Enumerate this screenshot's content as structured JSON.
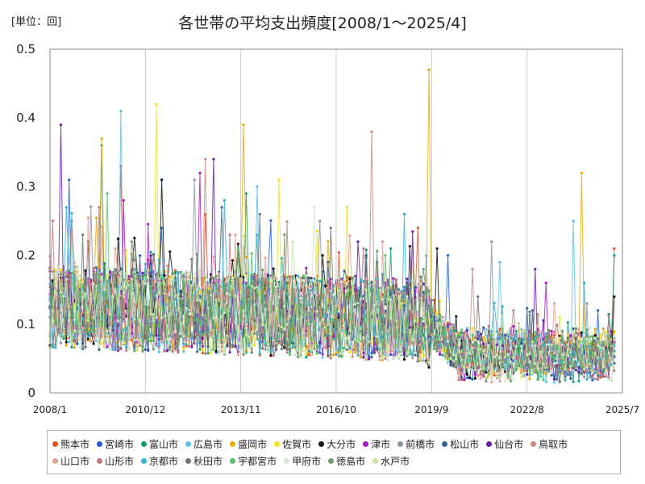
{
  "chart_data": {
    "type": "line",
    "title": "各世帯の平均支出頻度[2008/1～2025/4]",
    "unit_label": "[単位：回]",
    "x_ticks": [
      "2008/1",
      "2010/12",
      "2013/11",
      "2016/10",
      "2019/9",
      "2022/8",
      "2025/7"
    ],
    "x_range": [
      "2008/1",
      "2025/7"
    ],
    "ylim": [
      0,
      0.5
    ],
    "y_ticks": [
      0,
      0.1,
      0.2,
      0.3,
      0.4,
      0.5
    ],
    "y_tick_labels": [
      "0",
      "0.1",
      "0.2",
      "0.3",
      "0.4",
      "0.5"
    ],
    "grid": "vertical",
    "legend_placement": "bottom",
    "series": [
      {
        "name": "熊本市",
        "color": "#e8501e",
        "peaks": [
          [
            "2010/3",
            0.33
          ],
          [
            "2012/10",
            0.26
          ],
          [
            "2019/4",
            0.24
          ],
          [
            "2025/4",
            0.21
          ]
        ]
      },
      {
        "name": "宮崎市",
        "color": "#1f5fd6",
        "peaks": [
          [
            "2008/8",
            0.31
          ],
          [
            "2011/6",
            0.24
          ],
          [
            "2020/3",
            0.2
          ],
          [
            "2024/10",
            0.12
          ]
        ]
      },
      {
        "name": "富山市",
        "color": "#0e9f77",
        "peaks": [
          [
            "2009/8",
            0.36
          ],
          [
            "2014/1",
            0.29
          ],
          [
            "2018/6",
            0.21
          ],
          [
            "2025/4",
            0.2
          ]
        ]
      },
      {
        "name": "広島市",
        "color": "#5bc0f0",
        "peaks": [
          [
            "2010/3",
            0.41
          ],
          [
            "2014/5",
            0.3
          ],
          [
            "2021/10",
            0.19
          ],
          [
            "2024/1",
            0.25
          ]
        ]
      },
      {
        "name": "盛岡市",
        "color": "#e8a90b",
        "peaks": [
          [
            "2009/8",
            0.37
          ],
          [
            "2013/12",
            0.39
          ],
          [
            "2019/8",
            0.47
          ],
          [
            "2024/4",
            0.32
          ]
        ]
      },
      {
        "name": "佐賀市",
        "color": "#f5e21a",
        "peaks": [
          [
            "2011/4",
            0.42
          ],
          [
            "2015/1",
            0.31
          ],
          [
            "2017/2",
            0.27
          ],
          [
            "2019/2",
            0.21
          ]
        ]
      },
      {
        "name": "大分市",
        "color": "#111111",
        "peaks": [
          [
            "2011/6",
            0.31
          ],
          [
            "2016/5",
            0.2
          ],
          [
            "2019/11",
            0.21
          ],
          [
            "2025/4",
            0.14
          ]
        ]
      },
      {
        "name": "津市",
        "color": "#a21ac2",
        "peaks": [
          [
            "2010/4",
            0.28
          ],
          [
            "2012/8",
            0.32
          ],
          [
            "2018/1",
            0.19
          ],
          [
            "2023/3",
            0.16
          ]
        ]
      },
      {
        "name": "前橋市",
        "color": "#8c97a6",
        "peaks": [
          [
            "2012/6",
            0.31
          ],
          [
            "2016/4",
            0.25
          ],
          [
            "2021/7",
            0.22
          ],
          [
            "2024/6",
            0.13
          ]
        ]
      },
      {
        "name": "松山市",
        "color": "#3a6291",
        "peaks": [
          [
            "2009/3",
            0.22
          ],
          [
            "2013/4",
            0.27
          ],
          [
            "2017/9",
            0.2
          ],
          [
            "2022/10",
            0.12
          ]
        ]
      },
      {
        "name": "仙台市",
        "color": "#6a1ba3",
        "peaks": [
          [
            "2008/5",
            0.39
          ],
          [
            "2013/1",
            0.34
          ],
          [
            "2017/6",
            0.22
          ],
          [
            "2022/11",
            0.18
          ]
        ]
      },
      {
        "name": "鳥取市",
        "color": "#c98a80",
        "peaks": [
          [
            "2008/9",
            0.25
          ],
          [
            "2012/10",
            0.34
          ],
          [
            "2017/11",
            0.38
          ],
          [
            "2020/12",
            0.18
          ]
        ]
      },
      {
        "name": "山口市",
        "color": "#e4a090",
        "peaks": [
          [
            "2010/1",
            0.21
          ],
          [
            "2013/9",
            0.23
          ],
          [
            "2018/3",
            0.22
          ],
          [
            "2023/6",
            0.13
          ]
        ]
      },
      {
        "name": "山形市",
        "color": "#c0787e",
        "peaks": [
          [
            "2009/7",
            0.27
          ],
          [
            "2013/7",
            0.23
          ],
          [
            "2017/8",
            0.21
          ],
          [
            "2022/3",
            0.12
          ]
        ]
      },
      {
        "name": "京都市",
        "color": "#36b3cc",
        "peaks": [
          [
            "2008/7",
            0.27
          ],
          [
            "2013/5",
            0.28
          ],
          [
            "2018/11",
            0.26
          ],
          [
            "2024/5",
            0.16
          ]
        ]
      },
      {
        "name": "秋田市",
        "color": "#6e7868",
        "peaks": [
          [
            "2009/1",
            0.23
          ],
          [
            "2014/6",
            0.26
          ],
          [
            "2016/8",
            0.24
          ],
          [
            "2021/2",
            0.14
          ]
        ]
      },
      {
        "name": "宇都宮市",
        "color": "#55c466",
        "peaks": [
          [
            "2009/10",
            0.29
          ],
          [
            "2013/10",
            0.21
          ],
          [
            "2018/4",
            0.2
          ],
          [
            "2022/7",
            0.09
          ]
        ]
      },
      {
        "name": "甲府市",
        "color": "#cfe9cf",
        "peaks": [
          [
            "2008/11",
            0.18
          ],
          [
            "2014/9",
            0.06
          ],
          [
            "2016/2",
            0.27
          ],
          [
            "2021/5",
            0.09
          ]
        ]
      },
      {
        "name": "徳島市",
        "color": "#6e9b6e",
        "peaks": [
          [
            "2010/7",
            0.22
          ],
          [
            "2015/3",
            0.23
          ],
          [
            "2019/6",
            0.18
          ],
          [
            "2023/9",
            0.09
          ]
        ]
      },
      {
        "name": "水戸市",
        "color": "#c8e3a8",
        "peaks": [
          [
            "2008/12",
            0.17
          ],
          [
            "2015/6",
            0.22
          ],
          [
            "2017/4",
            0.16
          ],
          [
            "2022/5",
            0.1
          ]
        ]
      }
    ]
  }
}
